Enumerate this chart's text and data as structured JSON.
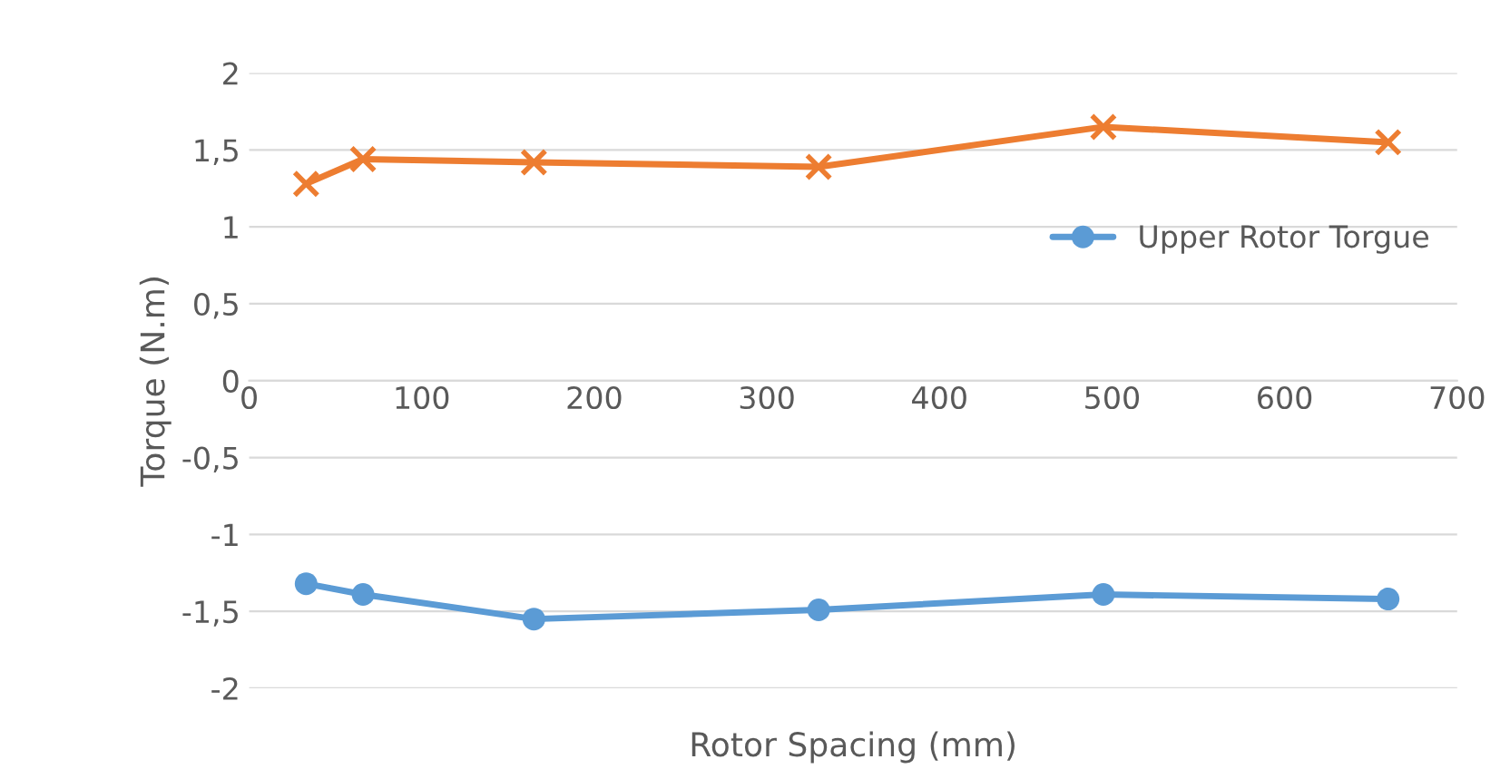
{
  "chart_data": {
    "type": "line",
    "xlabel": "Rotor Spacing (mm)",
    "ylabel": "Torque (N.m)",
    "x": [
      33,
      66,
      165,
      330,
      495,
      660
    ],
    "series": [
      {
        "color": "#ed7d31",
        "marker": "cross",
        "values": [
          1.28,
          1.44,
          1.42,
          1.39,
          1.65,
          1.55
        ]
      },
      {
        "name": "Upper Rotor Torgue",
        "color": "#5b9bd5",
        "marker": "circle",
        "values": [
          -1.32,
          -1.39,
          -1.55,
          -1.49,
          -1.39,
          -1.42
        ]
      }
    ],
    "xlim": [
      0,
      700
    ],
    "xticks": [
      0,
      100,
      200,
      300,
      400,
      500,
      600,
      700
    ],
    "ylim": [
      -2,
      2
    ],
    "yticks": [
      2,
      {
        "value": 1.5,
        "label": "1,5"
      },
      1,
      {
        "value": 0.5,
        "label": "0,5"
      },
      0,
      {
        "value": -0.5,
        "label": "-0,5"
      },
      -1,
      {
        "value": -1.5,
        "label": "-1,5"
      },
      -2
    ],
    "grid": "y",
    "legend": "right",
    "line_style": "solid"
  }
}
